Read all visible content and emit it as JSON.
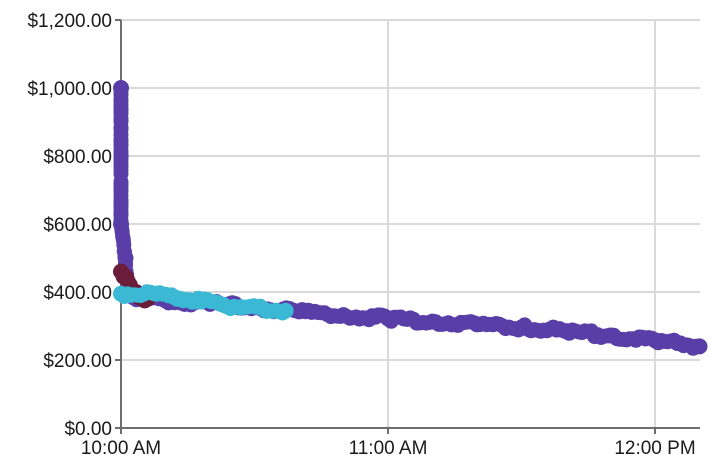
{
  "chart_data": {
    "type": "scatter",
    "title": "",
    "xlabel": "",
    "ylabel": "",
    "grid": true,
    "xlim": [
      "10:00 AM",
      "12:12 PM"
    ],
    "ylim": [
      0,
      1200
    ],
    "y_ticks": [
      0,
      200,
      400,
      600,
      800,
      1000,
      1200
    ],
    "y_tick_labels": [
      "$0.00",
      "$200.00",
      "$400.00",
      "$600.00",
      "$800.00",
      "$1,000.00",
      "$1,200.00"
    ],
    "x_ticks": [
      "10:00 AM",
      "11:00 AM",
      "12:00 PM"
    ],
    "series": [
      {
        "color": "#5a3ea8",
        "points": [
          {
            "x": "10:00 AM",
            "y": 1000
          },
          {
            "x": "10:00 AM",
            "y": 600
          },
          {
            "x": "10:01 AM",
            "y": 500
          },
          {
            "x": "10:01 AM",
            "y": 460
          },
          {
            "x": "10:02 AM",
            "y": 390
          },
          {
            "x": "10:05 AM",
            "y": 380
          },
          {
            "x": "10:10 AM",
            "y": 375
          },
          {
            "x": "10:20 AM",
            "y": 365
          },
          {
            "x": "10:30 AM",
            "y": 355
          },
          {
            "x": "10:40 AM",
            "y": 343
          },
          {
            "x": "10:50 AM",
            "y": 332
          },
          {
            "x": "11:00 AM",
            "y": 322
          },
          {
            "x": "11:10 AM",
            "y": 313
          },
          {
            "x": "11:20 AM",
            "y": 305
          },
          {
            "x": "11:30 AM",
            "y": 296
          },
          {
            "x": "11:40 AM",
            "y": 285
          },
          {
            "x": "11:50 AM",
            "y": 272
          },
          {
            "x": "12:00 PM",
            "y": 258
          },
          {
            "x": "12:05 PM",
            "y": 250
          },
          {
            "x": "12:10 PM",
            "y": 240
          }
        ]
      },
      {
        "color": "#6b1d3a",
        "points": [
          {
            "x": "10:00 AM",
            "y": 460
          },
          {
            "x": "10:01 AM",
            "y": 445
          },
          {
            "x": "10:02 AM",
            "y": 420
          },
          {
            "x": "10:03 AM",
            "y": 400
          },
          {
            "x": "10:04 AM",
            "y": 385
          },
          {
            "x": "10:06 AM",
            "y": 380
          }
        ]
      },
      {
        "color": "#3ab8d4",
        "points": [
          {
            "x": "10:00 AM",
            "y": 395
          },
          {
            "x": "10:08 AM",
            "y": 395
          },
          {
            "x": "10:12 AM",
            "y": 385
          },
          {
            "x": "10:18 AM",
            "y": 372
          },
          {
            "x": "10:23 AM",
            "y": 362
          },
          {
            "x": "10:27 AM",
            "y": 355
          },
          {
            "x": "10:32 AM",
            "y": 350
          },
          {
            "x": "10:37 AM",
            "y": 345
          }
        ]
      }
    ]
  }
}
